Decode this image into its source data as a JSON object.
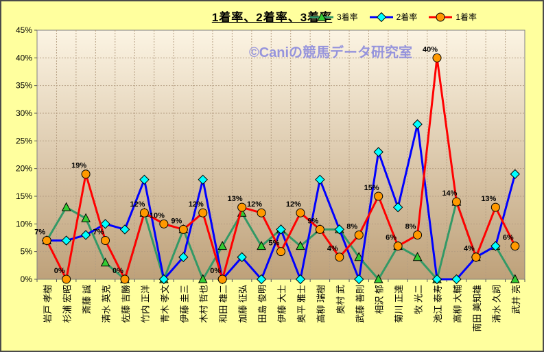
{
  "chart_data": {
    "type": "line",
    "title": "1着率、2着率、3着率",
    "watermark": "©Caniの競馬データ研究室",
    "categories": [
      "岩戸 孝樹",
      "杉浦 宏昭",
      "斎藤 誠",
      "清水 英克",
      "佐藤 吉勝",
      "竹内 正洋",
      "青木 孝文",
      "伊藤 圭三",
      "木村 哲也",
      "和田 雄二",
      "加藤 征弘",
      "田島 俊明",
      "伊藤 大士",
      "奥平 雅士",
      "高柳 瑞樹",
      "奥村 武",
      "武藤 善則",
      "相沢 郁",
      "菊川 正達",
      "牧 光二",
      "池江 泰寿",
      "高柳 大輔",
      "南田 美知雄",
      "清水 久詞",
      "武井 亮"
    ],
    "series": [
      {
        "name": "3着率",
        "line_color": "#339966",
        "marker": "triangle",
        "marker_fill": "#33CC33",
        "show_labels": false,
        "values": [
          7,
          13,
          11,
          3,
          0,
          12,
          0,
          9,
          0,
          6,
          12,
          6,
          9,
          6,
          9,
          9,
          4,
          0,
          6,
          4,
          0,
          14,
          4,
          6,
          0
        ]
      },
      {
        "name": "2着率",
        "line_color": "#0000FF",
        "marker": "diamond",
        "marker_fill": "#00FFFF",
        "show_labels": false,
        "values": [
          7,
          7,
          8,
          10,
          9,
          18,
          0,
          4,
          18,
          0,
          4,
          0,
          9,
          0,
          18,
          9,
          0,
          23,
          13,
          28,
          0,
          0,
          4,
          6,
          19
        ]
      },
      {
        "name": "1着率",
        "line_color": "#FF0000",
        "marker": "circle",
        "marker_fill": "#FF9900",
        "show_labels": true,
        "values": [
          7,
          0,
          19,
          7,
          0,
          12,
          10,
          9,
          12,
          0,
          13,
          12,
          5,
          12,
          9,
          4,
          8,
          15,
          6,
          8,
          40,
          14,
          4,
          13,
          6
        ],
        "labels": [
          "7%",
          "0%",
          "19%",
          "7%",
          "0%",
          "12%",
          "10%",
          "9%",
          "12%",
          "0%",
          "13%",
          "12%",
          "5%",
          "12%",
          "9%",
          "4%",
          "8%",
          "15%",
          "6%",
          "8%",
          "40%",
          "14%",
          "4%",
          "13%",
          "6%"
        ]
      }
    ],
    "y_axis": {
      "min": 0,
      "max": 45,
      "step": 5,
      "tick_labels": [
        "0%",
        "5%",
        "10%",
        "15%",
        "20%",
        "25%",
        "30%",
        "35%",
        "40%",
        "45%"
      ]
    },
    "grid": true,
    "legend_position": "top-right",
    "colors": {
      "outer_background": "#FFFF9E",
      "plot_gradient_top": "#FCF4E3",
      "plot_gradient_bottom": "#BEA17A",
      "gridline": "#B59E82",
      "plot_border": "#808080",
      "axis_tick": "#555555",
      "border": "#4A4A4A",
      "watermark": "#9694DC",
      "text": "#000000"
    }
  }
}
